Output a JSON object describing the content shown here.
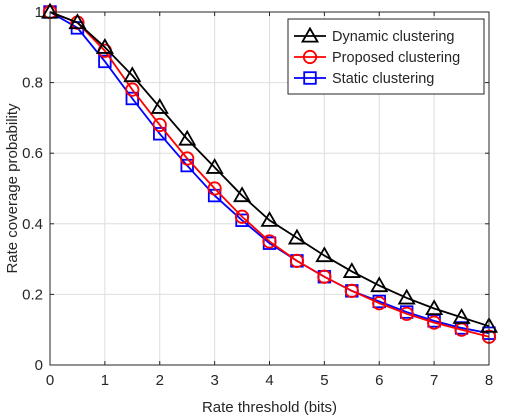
{
  "chart_data": {
    "type": "line",
    "xlabel": "Rate threshold (bits)",
    "ylabel": "Rate coverage probability",
    "xlim": [
      0,
      8
    ],
    "ylim": [
      0,
      1
    ],
    "xticks": [
      "0",
      "1",
      "2",
      "3",
      "4",
      "5",
      "6",
      "7",
      "8"
    ],
    "yticks": [
      "0",
      "0.2",
      "0.4",
      "0.6",
      "0.8",
      "1"
    ],
    "grid": true,
    "legend_position": "top-right",
    "x": [
      0,
      0.5,
      1,
      1.5,
      2,
      2.5,
      3,
      3.5,
      4,
      4.5,
      5,
      5.5,
      6,
      6.5,
      7,
      7.5,
      8
    ],
    "series": [
      {
        "name": "Dynamic clustering",
        "color": "#000000",
        "marker": "triangle",
        "values": [
          1.0,
          0.97,
          0.9,
          0.82,
          0.73,
          0.64,
          0.56,
          0.48,
          0.41,
          0.36,
          0.31,
          0.265,
          0.225,
          0.19,
          0.16,
          0.135,
          0.11
        ]
      },
      {
        "name": "Proposed clustering",
        "color": "#ff0000",
        "marker": "circle",
        "values": [
          1.0,
          0.97,
          0.89,
          0.78,
          0.68,
          0.585,
          0.5,
          0.42,
          0.35,
          0.295,
          0.25,
          0.21,
          0.175,
          0.145,
          0.12,
          0.1,
          0.08
        ]
      },
      {
        "name": "Static clustering",
        "color": "#0000ff",
        "marker": "square",
        "values": [
          1.0,
          0.955,
          0.86,
          0.755,
          0.655,
          0.565,
          0.48,
          0.41,
          0.345,
          0.295,
          0.25,
          0.21,
          0.18,
          0.15,
          0.125,
          0.105,
          0.09
        ]
      }
    ]
  }
}
